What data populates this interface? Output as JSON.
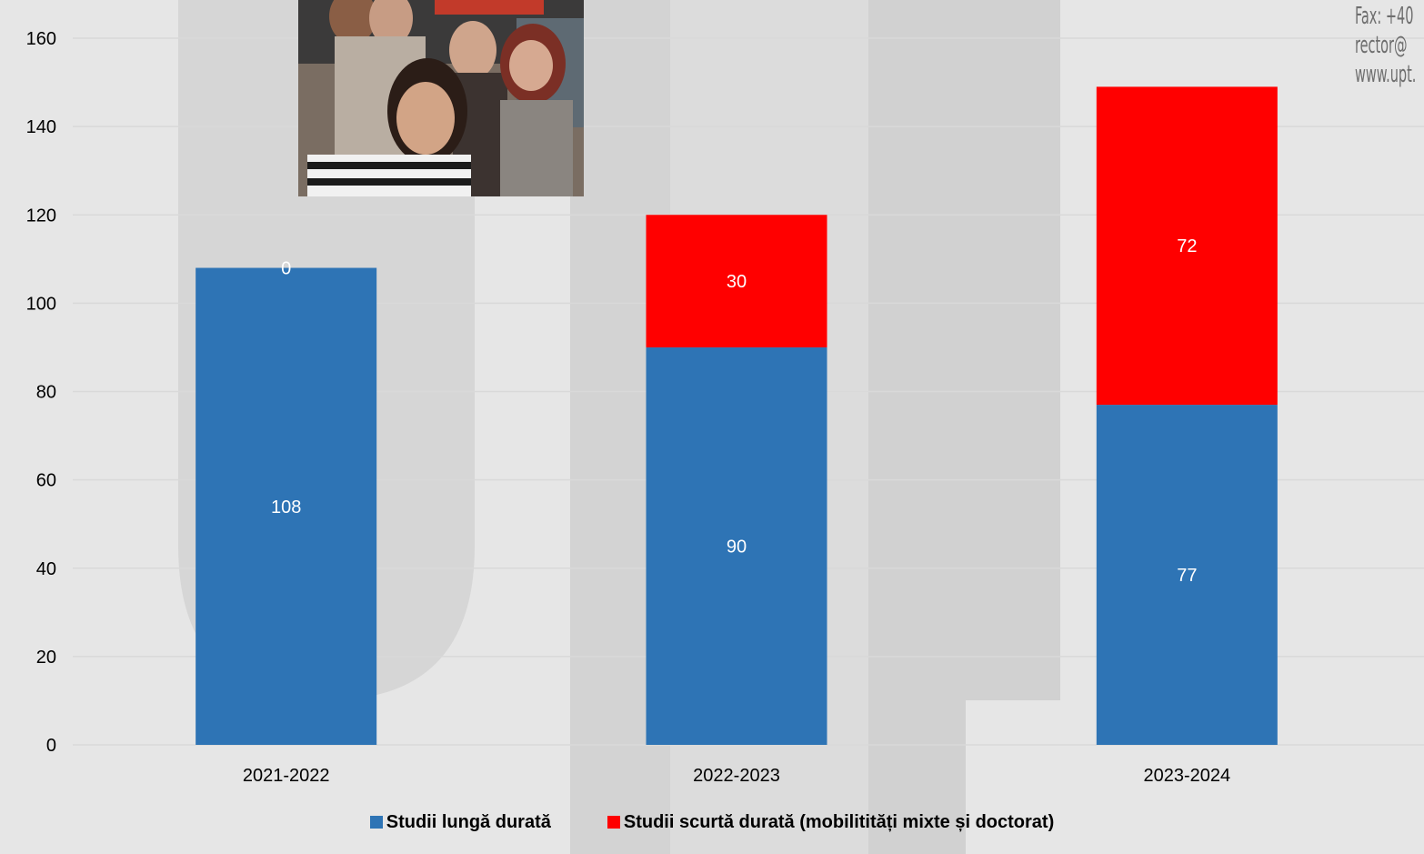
{
  "corner_text": [
    "Fax: +40",
    "rector@",
    "www.upt."
  ],
  "photo": {
    "description_icon": "group-selfie-photo"
  },
  "colors": {
    "long": "#2e74b5",
    "short": "#ff0000",
    "background": "#e6e6e6",
    "grid": "#d9d9d9"
  },
  "chart_data": {
    "type": "bar",
    "stacked": true,
    "categories": [
      "2021-2022",
      "2022-2023",
      "2023-2024"
    ],
    "series": [
      {
        "name": "Studii lungă durată",
        "values": [
          108,
          90,
          77
        ],
        "labels": [
          "108",
          "90",
          "77"
        ]
      },
      {
        "name": "Studii scurtă durată (mobilitități mixte și doctorat)",
        "values": [
          0,
          30,
          72
        ],
        "labels": [
          "0",
          "30",
          "72"
        ]
      }
    ],
    "title": "",
    "xlabel": "",
    "ylabel": "",
    "ylim": [
      0,
      160
    ],
    "yticks": [
      "0",
      "20",
      "40",
      "60",
      "80",
      "100",
      "120",
      "140",
      "160"
    ],
    "grid": true,
    "legend_position": "bottom"
  }
}
